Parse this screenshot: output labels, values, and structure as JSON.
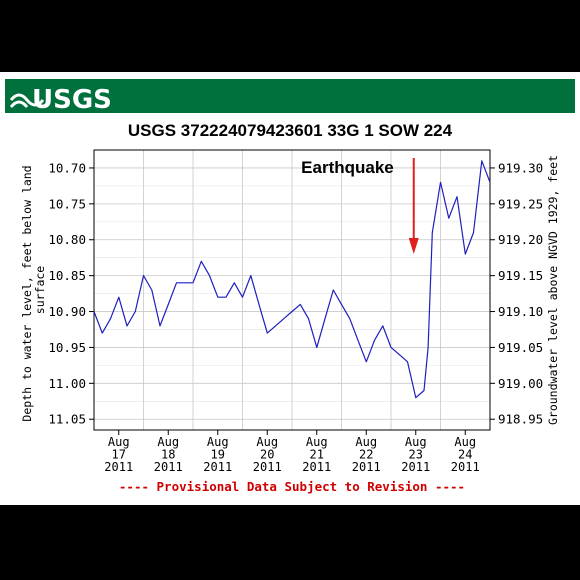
{
  "header": {
    "logo_text": "USGS",
    "band_color": "#00703c"
  },
  "chart_data": {
    "type": "line",
    "title": "USGS 372224079423601 33G  1 SOW 224",
    "ylabel_left": "Depth to water level, feet below land surface",
    "ylabel_right": "Groundwater level above NGVD 1929, feet",
    "ylim": [
      11.065,
      10.675
    ],
    "y_ticks": [
      "10.70",
      "10.75",
      "10.80",
      "10.85",
      "10.90",
      "10.95",
      "11.00",
      "11.05"
    ],
    "y_ticks_right": [
      "919.30",
      "919.25",
      "919.20",
      "919.15",
      "919.10",
      "919.05",
      "919.00",
      "918.95"
    ],
    "x_range": [
      "2011-08-16T12:00",
      "2011-08-24T12:00"
    ],
    "x_ticks": [
      {
        "month": "Aug",
        "day": "17",
        "year": "2011"
      },
      {
        "month": "Aug",
        "day": "18",
        "year": "2011"
      },
      {
        "month": "Aug",
        "day": "19",
        "year": "2011"
      },
      {
        "month": "Aug",
        "day": "20",
        "year": "2011"
      },
      {
        "month": "Aug",
        "day": "21",
        "year": "2011"
      },
      {
        "month": "Aug",
        "day": "22",
        "year": "2011"
      },
      {
        "month": "Aug",
        "day": "23",
        "year": "2011"
      },
      {
        "month": "Aug",
        "day": "24",
        "year": "2011"
      }
    ],
    "series": [
      {
        "color": "#1f1fbf",
        "points": [
          [
            "2011-08-16T12:00",
            10.9
          ],
          [
            "2011-08-16T16:00",
            10.93
          ],
          [
            "2011-08-16T20:00",
            10.91
          ],
          [
            "2011-08-17T00:00",
            10.88
          ],
          [
            "2011-08-17T04:00",
            10.92
          ],
          [
            "2011-08-17T08:00",
            10.9
          ],
          [
            "2011-08-17T12:00",
            10.85
          ],
          [
            "2011-08-17T16:00",
            10.87
          ],
          [
            "2011-08-17T20:00",
            10.92
          ],
          [
            "2011-08-18T00:00",
            10.89
          ],
          [
            "2011-08-18T04:00",
            10.86
          ],
          [
            "2011-08-18T08:00",
            10.86
          ],
          [
            "2011-08-18T12:00",
            10.86
          ],
          [
            "2011-08-18T16:00",
            10.83
          ],
          [
            "2011-08-18T20:00",
            10.85
          ],
          [
            "2011-08-19T00:00",
            10.88
          ],
          [
            "2011-08-19T04:00",
            10.88
          ],
          [
            "2011-08-19T08:00",
            10.86
          ],
          [
            "2011-08-19T12:00",
            10.88
          ],
          [
            "2011-08-19T16:00",
            10.85
          ],
          [
            "2011-08-19T20:00",
            10.89
          ],
          [
            "2011-08-20T00:00",
            10.93
          ],
          [
            "2011-08-20T04:00",
            10.92
          ],
          [
            "2011-08-20T08:00",
            10.91
          ],
          [
            "2011-08-20T12:00",
            10.9
          ],
          [
            "2011-08-20T16:00",
            10.89
          ],
          [
            "2011-08-20T20:00",
            10.91
          ],
          [
            "2011-08-21T00:00",
            10.95
          ],
          [
            "2011-08-21T04:00",
            10.91
          ],
          [
            "2011-08-21T08:00",
            10.87
          ],
          [
            "2011-08-21T12:00",
            10.89
          ],
          [
            "2011-08-21T16:00",
            10.91
          ],
          [
            "2011-08-21T20:00",
            10.94
          ],
          [
            "2011-08-22T00:00",
            10.97
          ],
          [
            "2011-08-22T04:00",
            10.94
          ],
          [
            "2011-08-22T08:00",
            10.92
          ],
          [
            "2011-08-22T12:00",
            10.95
          ],
          [
            "2011-08-22T16:00",
            10.96
          ],
          [
            "2011-08-22T20:00",
            10.97
          ],
          [
            "2011-08-23T00:00",
            11.02
          ],
          [
            "2011-08-23T04:00",
            11.01
          ],
          [
            "2011-08-23T06:00",
            10.95
          ],
          [
            "2011-08-23T08:00",
            10.79
          ],
          [
            "2011-08-23T12:00",
            10.72
          ],
          [
            "2011-08-23T16:00",
            10.77
          ],
          [
            "2011-08-23T20:00",
            10.74
          ],
          [
            "2011-08-24T00:00",
            10.82
          ],
          [
            "2011-08-24T04:00",
            10.79
          ],
          [
            "2011-08-24T08:00",
            10.69
          ],
          [
            "2011-08-24T12:00",
            10.72
          ]
        ]
      }
    ],
    "annotation": {
      "text": "Earthquake",
      "time": "2011-08-23T12:00",
      "arrow_color": "#e02020"
    },
    "footnote": "---- Provisional Data Subject to Revision ----",
    "footnote_color": "#d00000",
    "grid": true,
    "legend": "none"
  }
}
